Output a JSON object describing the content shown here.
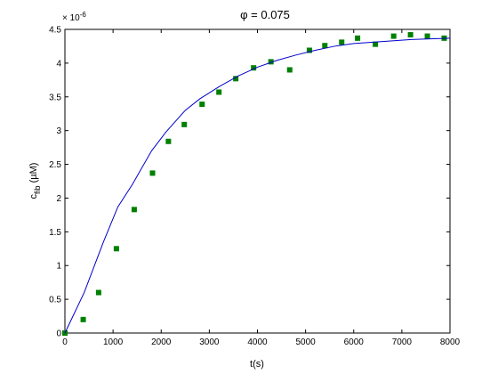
{
  "chart_data": {
    "type": "scatter",
    "title_symbol": "φ",
    "title_rest": " = 0.075",
    "xlabel": "t(s)",
    "ylabel_main": "c",
    "ylabel_sub": "fib",
    "ylabel_unit": " (µM)",
    "y_multiplier_base": "× 10",
    "y_multiplier_exp": "-6",
    "xlim": [
      0,
      8000
    ],
    "ylim": [
      0,
      4.5
    ],
    "x_ticks": [
      0,
      1000,
      2000,
      3000,
      4000,
      5000,
      6000,
      7000,
      8000
    ],
    "x_tick_labels": [
      "0",
      "1000",
      "2000",
      "3000",
      "4000",
      "5000",
      "6000",
      "7000",
      "8000"
    ],
    "y_ticks": [
      0,
      0.5,
      1,
      1.5,
      2,
      2.5,
      3,
      3.5,
      4,
      4.5
    ],
    "y_tick_labels": [
      "0",
      "0.5",
      "1",
      "1.5",
      "2",
      "2.5",
      "3",
      "3.5",
      "4",
      "4.5"
    ],
    "grid": false,
    "series": [
      {
        "kind": "markers",
        "color": "#008000",
        "x": [
          0,
          380,
          700,
          1070,
          1440,
          1820,
          2150,
          2480,
          2850,
          3200,
          3550,
          3920,
          4280,
          4670,
          5080,
          5400,
          5750,
          6080,
          6450,
          6830,
          7180,
          7530,
          7880
        ],
        "y": [
          0.0,
          0.2,
          0.6,
          1.25,
          1.83,
          2.37,
          2.84,
          3.09,
          3.39,
          3.57,
          3.77,
          3.93,
          4.02,
          3.9,
          4.19,
          4.26,
          4.31,
          4.37,
          4.28,
          4.4,
          4.42,
          4.4,
          4.37
        ]
      },
      {
        "kind": "line",
        "color": "#0000cc",
        "x": [
          0,
          400,
          800,
          1100,
          1400,
          1800,
          2100,
          2500,
          2800,
          3200,
          3600,
          4000,
          4400,
          4800,
          5200,
          5600,
          6000,
          6400,
          6800,
          7200,
          7600,
          8000
        ],
        "y": [
          0.0,
          0.6,
          1.35,
          1.87,
          2.2,
          2.7,
          2.98,
          3.3,
          3.47,
          3.65,
          3.81,
          3.94,
          4.04,
          4.12,
          4.19,
          4.25,
          4.29,
          4.31,
          4.33,
          4.35,
          4.36,
          4.37
        ]
      }
    ]
  }
}
